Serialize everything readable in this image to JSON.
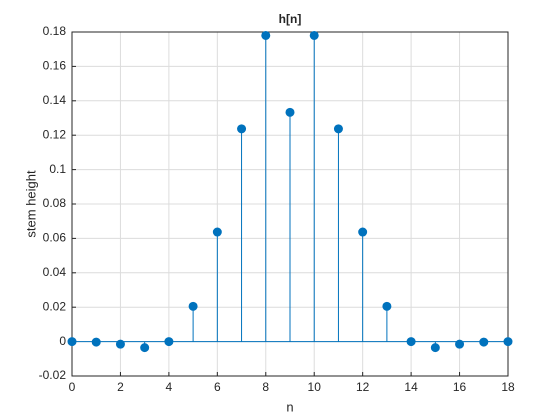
{
  "chart_data": {
    "type": "stem",
    "title": "h[n]",
    "xlabel": "n",
    "ylabel": "stem height",
    "x": [
      0,
      1,
      2,
      3,
      4,
      5,
      6,
      7,
      8,
      9,
      10,
      11,
      12,
      13,
      14,
      15,
      16,
      17,
      18
    ],
    "values": [
      0,
      -0.0003,
      -0.0015,
      -0.0035,
      0,
      0.0205,
      0.0637,
      0.1237,
      0.178,
      0.1333,
      0.178,
      0.1237,
      0.0637,
      0.0205,
      0,
      -0.0035,
      -0.0015,
      -0.0003,
      0
    ],
    "color": "#0072BD",
    "xlim": [
      0,
      18
    ],
    "xticks": [
      0,
      2,
      4,
      6,
      8,
      10,
      12,
      14,
      16,
      18
    ],
    "ylim": [
      -0.02,
      0.18
    ],
    "yticks": [
      -0.02,
      0,
      0.02,
      0.04,
      0.06,
      0.08,
      0.1,
      0.12,
      0.14,
      0.16,
      0.18
    ],
    "grid": true
  }
}
